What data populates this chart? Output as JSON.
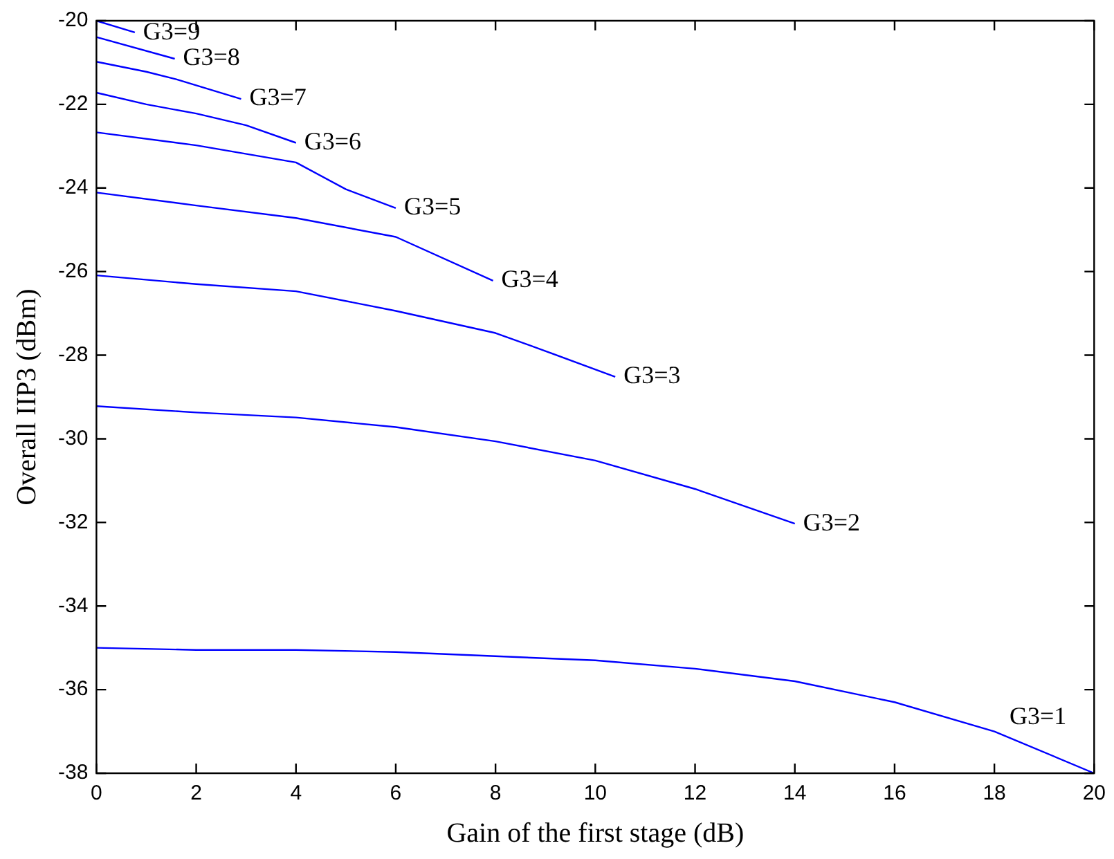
{
  "chart_data": {
    "type": "line",
    "xlabel": "Gain of the first stage (dB)",
    "ylabel": "Overall IIP3 (dBm)",
    "xlim": [
      0,
      20
    ],
    "xticks": [
      0,
      2,
      4,
      6,
      8,
      10,
      12,
      14,
      16,
      18,
      20
    ],
    "ylim": [
      -38,
      -20
    ],
    "yticks": [
      -38,
      -36,
      -34,
      -32,
      -30,
      -28,
      -26,
      -24,
      -22,
      -20
    ],
    "grid": false,
    "legend": false,
    "marker": "none",
    "line_style": "solid",
    "series": [
      {
        "name": "G3=1",
        "color": "#0000ff",
        "x": [
          0,
          2,
          4,
          6,
          8,
          10,
          12,
          14,
          16,
          18,
          20
        ],
        "values": [
          -35,
          -35.05,
          -35.05,
          -35.1,
          -35.2,
          -35.3,
          -35.5,
          -35.8,
          -36.3,
          -37,
          -38
        ]
      },
      {
        "name": "G3=2",
        "color": "#0000ff",
        "x": [
          0,
          2,
          4,
          6,
          8,
          10,
          12,
          14
        ],
        "values": [
          -29.22,
          -29.37,
          -29.49,
          -29.72,
          -30.06,
          -30.52,
          -31.2,
          -32.03
        ]
      },
      {
        "name": "G3=3",
        "color": "#0000ff",
        "x": [
          0,
          2,
          4,
          6,
          8,
          9,
          10.4
        ],
        "values": [
          -26.09,
          -26.3,
          -26.47,
          -26.94,
          -27.47,
          -27.9,
          -28.52
        ]
      },
      {
        "name": "G3=4",
        "color": "#0000ff",
        "x": [
          0,
          2,
          4,
          6,
          7.95
        ],
        "values": [
          -24.11,
          -24.42,
          -24.72,
          -25.17,
          -26.22
        ]
      },
      {
        "name": "G3=5",
        "color": "#0000ff",
        "x": [
          0,
          2,
          4,
          5,
          6
        ],
        "values": [
          -22.67,
          -22.98,
          -23.39,
          -24.03,
          -24.48
        ]
      },
      {
        "name": "G3=6",
        "color": "#0000ff",
        "x": [
          0,
          1,
          2,
          3,
          4
        ],
        "values": [
          -21.72,
          -22,
          -22.22,
          -22.5,
          -22.92
        ]
      },
      {
        "name": "G3=7",
        "color": "#0000ff",
        "x": [
          0,
          1,
          1.6,
          2.9
        ],
        "values": [
          -20.98,
          -21.22,
          -21.4,
          -21.87
        ]
      },
      {
        "name": "G3=8",
        "color": "#0000ff",
        "x": [
          0,
          1.57
        ],
        "values": [
          -20.39,
          -20.91
        ]
      },
      {
        "name": "G3=9",
        "color": "#0000ff",
        "x": [
          0,
          0.77
        ],
        "values": [
          -20,
          -20.28
        ]
      }
    ]
  }
}
